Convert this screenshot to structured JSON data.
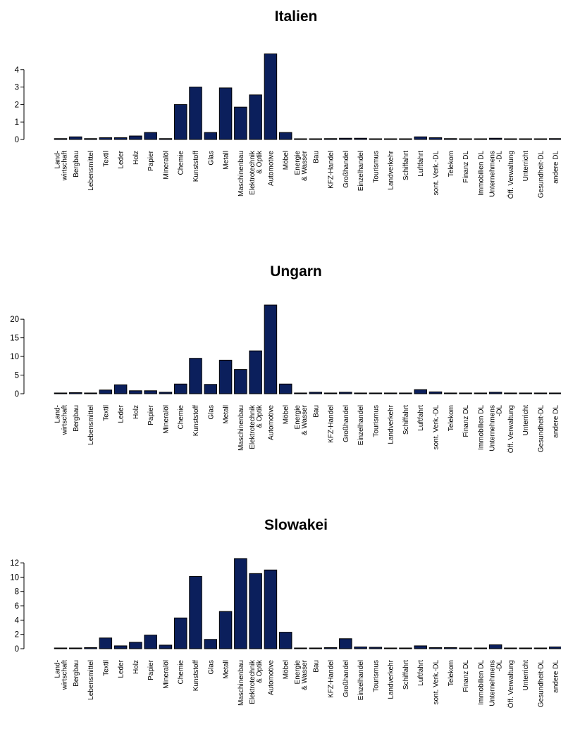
{
  "chart_data": [
    {
      "type": "bar",
      "title": "Italien",
      "categories": [
        [
          "Land-",
          "wirtschaft"
        ],
        [
          "Bergbau"
        ],
        [
          "Lebensmittel"
        ],
        [
          "Textil"
        ],
        [
          "Leder"
        ],
        [
          "Holz"
        ],
        [
          "Papier"
        ],
        [
          "Mineralöl"
        ],
        [
          "Chemie"
        ],
        [
          "Kunststoff"
        ],
        [
          "Glas"
        ],
        [
          "Metall"
        ],
        [
          "Maschinenbau"
        ],
        [
          "Elektrotechnik",
          "& Optik"
        ],
        [
          "Automotive"
        ],
        [
          "Möbel"
        ],
        [
          "Energie",
          "& Wasser"
        ],
        [
          "Bau"
        ],
        [
          "KFZ-Handel"
        ],
        [
          "Großhandel"
        ],
        [
          "Einzelhandel"
        ],
        [
          "Tourismus"
        ],
        [
          "Landverkehr"
        ],
        [
          "Schiffahrt"
        ],
        [
          "Luftfahrt"
        ],
        [
          "sont. Verk.-DL"
        ],
        [
          "Telekom"
        ],
        [
          "Finanz DL"
        ],
        [
          "Immobilien DL"
        ],
        [
          "Unternehmens",
          "-DL"
        ],
        [
          "Öff. Verwaltung"
        ],
        [
          "Unterricht"
        ],
        [
          "Gesundheit-DL"
        ],
        [
          "andere DL"
        ]
      ],
      "values": [
        0.05,
        0.15,
        0.05,
        0.1,
        0.1,
        0.2,
        0.4,
        0.05,
        2.0,
        3.0,
        0.4,
        2.95,
        1.85,
        2.55,
        4.9,
        0.4,
        0.03,
        0.03,
        0.05,
        0.07,
        0.07,
        0.03,
        0.03,
        0.03,
        0.15,
        0.1,
        0.05,
        0.03,
        0.03,
        0.07,
        0.03,
        0.03,
        0.03,
        0.05
      ],
      "yticks": [
        0,
        1,
        2,
        3,
        4
      ],
      "ylim": [
        0,
        5
      ],
      "bar_color": "#0b1f5c"
    },
    {
      "type": "bar",
      "title": "Ungarn",
      "categories": [
        [
          "Land-",
          "wirtschaft"
        ],
        [
          "Bergbau"
        ],
        [
          "Lebensmittel"
        ],
        [
          "Textil"
        ],
        [
          "Leder"
        ],
        [
          "Holz"
        ],
        [
          "Papier"
        ],
        [
          "Mineralöl"
        ],
        [
          "Chemie"
        ],
        [
          "Kunststoff"
        ],
        [
          "Glas"
        ],
        [
          "Metall"
        ],
        [
          "Maschinenbau"
        ],
        [
          "Elektrotechnik",
          "& Optik"
        ],
        [
          "Automotive"
        ],
        [
          "Möbel"
        ],
        [
          "Energie",
          "& Wasser"
        ],
        [
          "Bau"
        ],
        [
          "KFZ-Handel"
        ],
        [
          "Großhandel"
        ],
        [
          "Einzelhandel"
        ],
        [
          "Tourismus"
        ],
        [
          "Landverkehr"
        ],
        [
          "Schiffahrt"
        ],
        [
          "Luftfahrt"
        ],
        [
          "sont. Verk.-DL"
        ],
        [
          "Telekom"
        ],
        [
          "Finanz DL"
        ],
        [
          "Immobilien DL"
        ],
        [
          "Unternehmens",
          "-DL"
        ],
        [
          "Öff. Verwaltung"
        ],
        [
          "Unterricht"
        ],
        [
          "Gesundheit-DL"
        ],
        [
          "andere DL"
        ]
      ],
      "values": [
        0.2,
        0.3,
        0.2,
        1.0,
        2.4,
        0.8,
        0.8,
        0.4,
        2.6,
        9.5,
        2.5,
        9.0,
        6.5,
        11.5,
        23.8,
        2.6,
        0.2,
        0.4,
        0.2,
        0.4,
        0.2,
        0.2,
        0.2,
        0.2,
        1.1,
        0.5,
        0.2,
        0.2,
        0.2,
        0.4,
        0.2,
        0.2,
        0.2,
        0.2
      ],
      "yticks": [
        0,
        5,
        10,
        15,
        20
      ],
      "ylim": [
        0,
        24
      ],
      "bar_color": "#0b1f5c"
    },
    {
      "type": "bar",
      "title": "Slowakei",
      "categories": [
        [
          "Land-",
          "wirtschaft"
        ],
        [
          "Bergbau"
        ],
        [
          "Lebensmittel"
        ],
        [
          "Textil"
        ],
        [
          "Leder"
        ],
        [
          "Holz"
        ],
        [
          "Papier"
        ],
        [
          "Mineralöl"
        ],
        [
          "Chemie"
        ],
        [
          "Kunststoff"
        ],
        [
          "Glas"
        ],
        [
          "Metall"
        ],
        [
          "Maschinenbau"
        ],
        [
          "Elektrotechnik",
          "& Optik"
        ],
        [
          "Automotive"
        ],
        [
          "Möbel"
        ],
        [
          "Energie",
          "& Wasser"
        ],
        [
          "Bau"
        ],
        [
          "KFZ-Handel"
        ],
        [
          "Großhandel"
        ],
        [
          "Einzelhandel"
        ],
        [
          "Tourismus"
        ],
        [
          "Landverkehr"
        ],
        [
          "Schiffahrt"
        ],
        [
          "Luftfahrt"
        ],
        [
          "sont. Verk.-DL"
        ],
        [
          "Telekom"
        ],
        [
          "Finanz DL"
        ],
        [
          "Immobilien DL"
        ],
        [
          "Unternehmens",
          "-DL"
        ],
        [
          "Öff. Verwaltung"
        ],
        [
          "Unterricht"
        ],
        [
          "Gesundheit-DL"
        ],
        [
          "andere DL"
        ]
      ],
      "values": [
        0.1,
        0.1,
        0.15,
        1.5,
        0.4,
        0.9,
        1.9,
        0.5,
        4.3,
        10.1,
        1.3,
        5.2,
        12.6,
        10.5,
        11.0,
        2.3,
        0.1,
        0.1,
        0.15,
        1.4,
        0.25,
        0.2,
        0.1,
        0.1,
        0.4,
        0.15,
        0.15,
        0.1,
        0.1,
        0.55,
        0.1,
        0.1,
        0.1,
        0.25
      ],
      "yticks": [
        0,
        2,
        4,
        6,
        8,
        10,
        12
      ],
      "ylim": [
        0,
        12.6
      ],
      "bar_color": "#0b1f5c"
    }
  ]
}
